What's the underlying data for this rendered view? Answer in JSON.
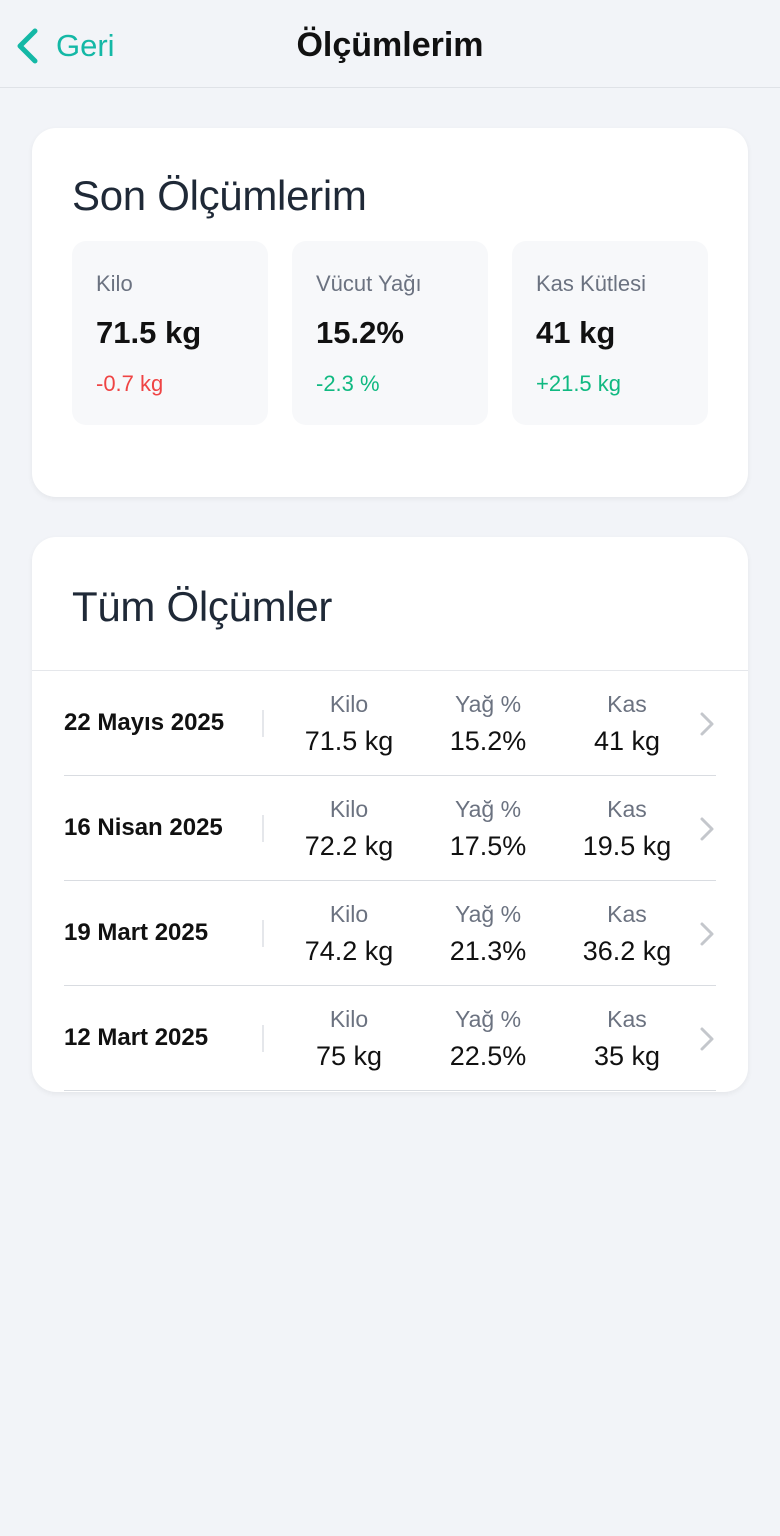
{
  "nav": {
    "back_label": "Geri",
    "title": "Ölçümlerim"
  },
  "summary": {
    "heading": "Son Ölçümlerim",
    "stats": [
      {
        "label": "Kilo",
        "value": "71.5 kg",
        "delta": "-0.7 kg",
        "trend": "negative"
      },
      {
        "label": "Vücut Yağı",
        "value": "15.2%",
        "delta": "-2.3 %",
        "trend": "positive"
      },
      {
        "label": "Kas Kütlesi",
        "value": "41 kg",
        "delta": "+21.5 kg",
        "trend": "positive"
      }
    ]
  },
  "all": {
    "heading": "Tüm Ölçümler",
    "rows": [
      {
        "date": "22 Mayıs 2025",
        "weight_label": "Kilo",
        "weight": "71.5 kg",
        "fat_label": "Yağ %",
        "fat": "15.2%",
        "muscle_label": "Kas",
        "muscle": "41 kg"
      },
      {
        "date": "16 Nisan 2025",
        "weight_label": "Kilo",
        "weight": "72.2 kg",
        "fat_label": "Yağ %",
        "fat": "17.5%",
        "muscle_label": "Kas",
        "muscle": "19.5 kg"
      },
      {
        "date": "19 Mart 2025",
        "weight_label": "Kilo",
        "weight": "74.2 kg",
        "fat_label": "Yağ %",
        "fat": "21.3%",
        "muscle_label": "Kas",
        "muscle": "36.2 kg"
      },
      {
        "date": "12 Mart 2025",
        "weight_label": "Kilo",
        "weight": "75 kg",
        "fat_label": "Yağ %",
        "fat": "22.5%",
        "muscle_label": "Kas",
        "muscle": "35 kg"
      }
    ]
  },
  "colors": {
    "accent": "#14b8a6",
    "negative": "#ef4444",
    "positive": "#10b981"
  }
}
